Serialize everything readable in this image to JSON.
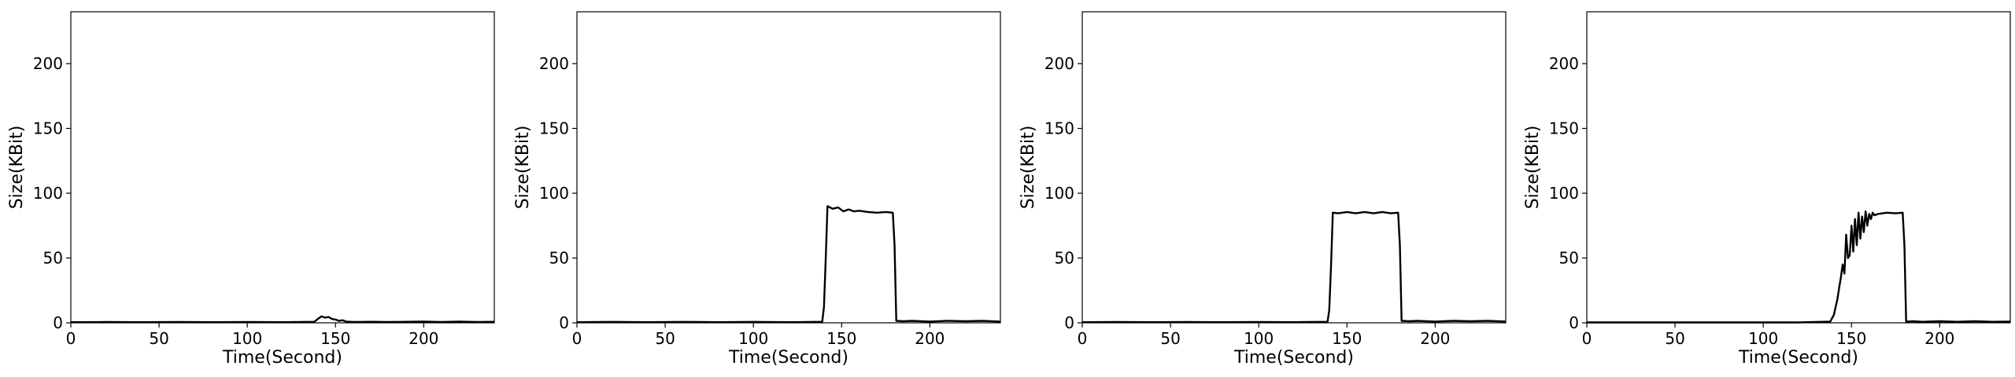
{
  "chart_data": [
    {
      "type": "line",
      "xlabel": "Time(Second)",
      "ylabel": "Size(KBit)",
      "xlim": [
        0,
        240
      ],
      "ylim": [
        0,
        240
      ],
      "xticks": [
        0,
        50,
        100,
        150,
        200
      ],
      "yticks": [
        0,
        50,
        100,
        150,
        200
      ],
      "grid": false,
      "color": "#000000",
      "series": [
        {
          "x": [
            0,
            20,
            40,
            60,
            80,
            100,
            120,
            138,
            140,
            142,
            144,
            146,
            148,
            150,
            152,
            154,
            156,
            158,
            160,
            170,
            180,
            190,
            200,
            210,
            220,
            230,
            240
          ],
          "y": [
            0.5,
            0.6,
            0.5,
            0.6,
            0.5,
            0.6,
            0.5,
            0.8,
            3,
            5,
            4,
            4.5,
            3,
            2.5,
            1.5,
            2,
            1,
            0.8,
            0.6,
            0.8,
            0.6,
            0.8,
            1,
            0.6,
            1,
            0.6,
            0.8
          ]
        }
      ]
    },
    {
      "type": "line",
      "xlabel": "Time(Second)",
      "ylabel": "Size(KBit)",
      "xlim": [
        0,
        240
      ],
      "ylim": [
        0,
        240
      ],
      "xticks": [
        0,
        50,
        100,
        150,
        200
      ],
      "yticks": [
        0,
        50,
        100,
        150,
        200
      ],
      "grid": false,
      "color": "#000000",
      "series": [
        {
          "x": [
            0,
            20,
            40,
            60,
            80,
            100,
            120,
            139,
            140,
            141,
            142,
            145,
            148,
            151,
            154,
            157,
            160,
            165,
            170,
            175,
            179,
            180,
            181,
            185,
            190,
            200,
            210,
            220,
            230,
            240
          ],
          "y": [
            0.5,
            0.7,
            0.5,
            0.7,
            0.5,
            0.7,
            0.5,
            0.8,
            12,
            50,
            90,
            88,
            89,
            86,
            87.5,
            86,
            86.5,
            85.5,
            85,
            85.5,
            85,
            60,
            1.5,
            1.2,
            1.5,
            1,
            1.6,
            1.2,
            1.5,
            1
          ]
        }
      ]
    },
    {
      "type": "line",
      "xlabel": "Time(Second)",
      "ylabel": "Size(KBit)",
      "xlim": [
        0,
        240
      ],
      "ylim": [
        0,
        240
      ],
      "xticks": [
        0,
        50,
        100,
        150,
        200
      ],
      "yticks": [
        0,
        50,
        100,
        150,
        200
      ],
      "grid": false,
      "color": "#000000",
      "series": [
        {
          "x": [
            0,
            20,
            40,
            60,
            80,
            100,
            120,
            139,
            140,
            141,
            142,
            145,
            150,
            155,
            160,
            165,
            170,
            175,
            179,
            180,
            181,
            185,
            190,
            200,
            210,
            220,
            230,
            240
          ],
          "y": [
            0.5,
            0.6,
            0.5,
            0.6,
            0.5,
            0.6,
            0.5,
            0.8,
            10,
            45,
            85,
            84.5,
            85.5,
            84.5,
            85.5,
            84.5,
            85.5,
            84.5,
            85,
            60,
            1.5,
            1.2,
            1.5,
            1,
            1.5,
            1.2,
            1.5,
            1
          ]
        }
      ]
    },
    {
      "type": "line",
      "xlabel": "Time(Second)",
      "ylabel": "Size(KBit)",
      "xlim": [
        0,
        240
      ],
      "ylim": [
        0,
        240
      ],
      "xticks": [
        0,
        50,
        100,
        150,
        200
      ],
      "yticks": [
        0,
        50,
        100,
        150,
        200
      ],
      "grid": false,
      "color": "#000000",
      "series": [
        {
          "x": [
            0,
            20,
            40,
            60,
            80,
            100,
            120,
            138,
            140,
            142,
            143,
            144,
            145,
            146,
            147,
            148,
            149,
            150,
            151,
            152,
            153,
            154,
            155,
            156,
            157,
            158,
            159,
            160,
            161,
            162,
            163,
            165,
            170,
            175,
            179,
            180,
            181,
            185,
            190,
            200,
            210,
            220,
            230,
            240
          ],
          "y": [
            0.3,
            0.3,
            0.3,
            0.3,
            0.3,
            0.3,
            0.3,
            1,
            6,
            18,
            27,
            35,
            45,
            38,
            68,
            50,
            52,
            75,
            55,
            80,
            60,
            85,
            65,
            82,
            70,
            86,
            75,
            84,
            80,
            85,
            83,
            84,
            85,
            84.5,
            85,
            60,
            1,
            1.2,
            0.8,
            1.2,
            0.8,
            1.2,
            0.8,
            1
          ]
        }
      ]
    }
  ]
}
